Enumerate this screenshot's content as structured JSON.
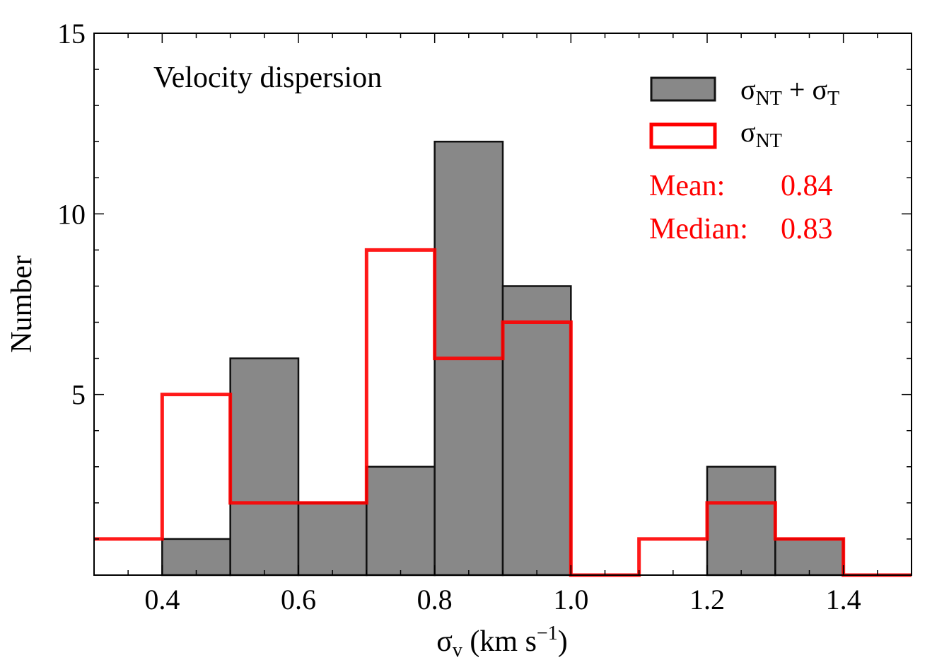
{
  "chart_data": {
    "type": "bar",
    "annotation": "Velocity dispersion",
    "xlabel": {
      "main": "σ",
      "sub": "v",
      "rest": " (km s",
      "sup": "−1",
      "close": ")"
    },
    "ylabel": "Number",
    "xlim": [
      0.3,
      1.5
    ],
    "ylim": [
      0,
      15
    ],
    "x_major_ticks": [
      0.4,
      0.6,
      0.8,
      1.0,
      1.2,
      1.4
    ],
    "x_tick_labels": [
      "0.4",
      "0.6",
      "0.8",
      "1.0",
      "1.2",
      "1.4"
    ],
    "x_minor_step": 0.05,
    "y_major_ticks": [
      5,
      10,
      15
    ],
    "y_tick_labels": [
      "5",
      "10",
      "15"
    ],
    "y_minor_step": 1,
    "bin_edges": [
      0.3,
      0.4,
      0.5,
      0.6,
      0.7,
      0.8,
      0.9,
      1.0,
      1.1,
      1.2,
      1.3,
      1.4,
      1.5
    ],
    "series": [
      {
        "name": "σNT + σT",
        "style": "filled",
        "fill": "#888888",
        "edge": "#111111",
        "values": [
          0,
          1,
          6,
          2,
          3,
          12,
          8,
          0,
          0,
          3,
          1,
          0
        ]
      },
      {
        "name": "σNT",
        "style": "step",
        "edge": "#ff0000",
        "values": [
          1,
          5,
          2,
          2,
          9,
          6,
          7,
          0,
          1,
          2,
          1,
          0
        ]
      }
    ],
    "legend": {
      "placement": "top-right",
      "entries": [
        {
          "base": "σ",
          "sub1": "NT",
          "plus": " + ",
          "base2": "σ",
          "sub2": "T"
        },
        {
          "base": "σ",
          "sub1": "NT"
        }
      ]
    },
    "stats": {
      "mean_label": "Mean:",
      "mean_value": "0.84",
      "median_label": "Median:",
      "median_value": "0.83"
    }
  }
}
